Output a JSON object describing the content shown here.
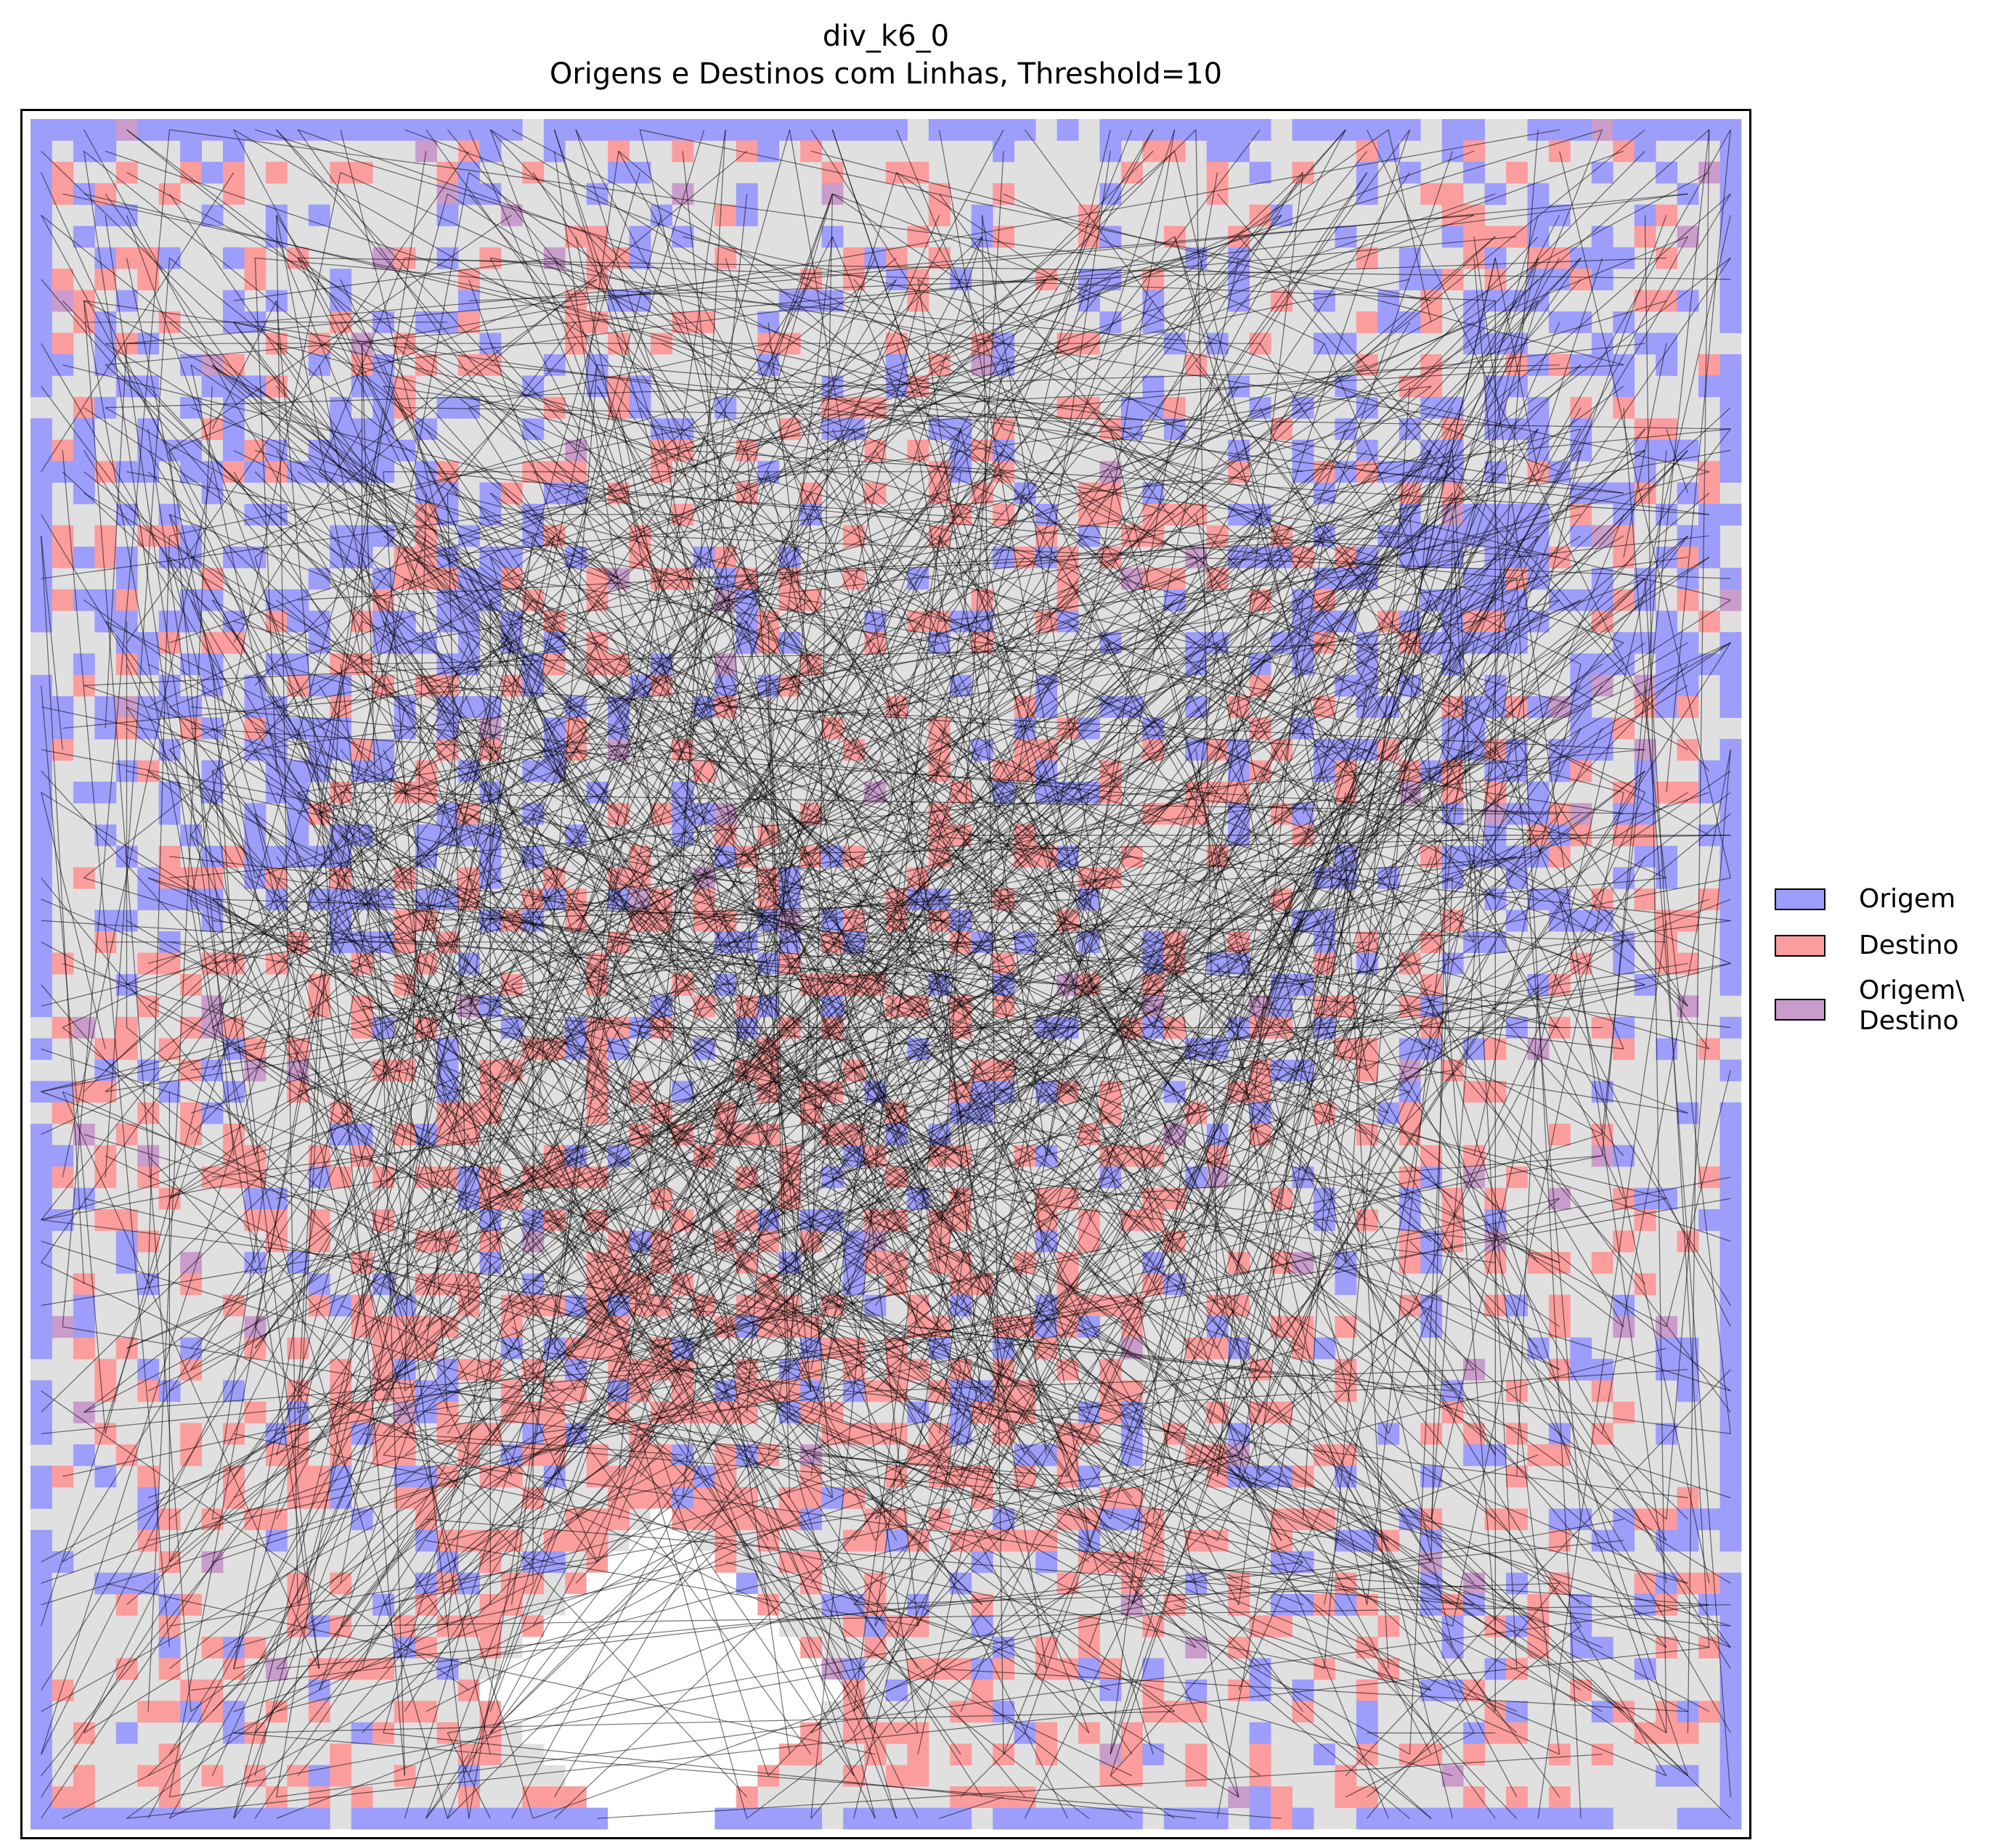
{
  "chart_data": {
    "type": "heatmap",
    "title": "div_k6_0",
    "subtitle": "Origens e Destinos com Linhas, Threshold=10",
    "xlabel": "",
    "ylabel": "",
    "grid": false,
    "axis_ticks": false,
    "legend_placement": "center-right, outside plot",
    "grid_cells": 80,
    "categories": [
      "Origem",
      "Destino",
      "Origem\\ Destino"
    ],
    "series": [
      {
        "name": "Origem",
        "color": "#9d9dfb",
        "description_fraction": 0.25
      },
      {
        "name": "Destino",
        "color": "#fb9d9d",
        "description_fraction": 0.35
      },
      {
        "name": "Origem\\ Destino",
        "color": "#c99ccb",
        "description_fraction": 0.02
      }
    ],
    "background_color": "#e0e0e0",
    "line_color": "#000000",
    "threshold": 10,
    "empty_region": {
      "shape": "diamond",
      "center": [
        29,
        73
      ],
      "radius": 8
    },
    "notes_values": {
      "origin_hotspots": [
        [
          10,
          22
        ],
        [
          72,
          22
        ]
      ],
      "destination_hotspot": [
        30,
        62
      ]
    }
  },
  "legend": {
    "items": [
      {
        "label": "Origem",
        "color": "#9d9dfb"
      },
      {
        "label": "Destino",
        "color": "#fb9d9d"
      },
      {
        "label": "Origem\\\nDestino",
        "color": "#c99ccb"
      }
    ]
  }
}
